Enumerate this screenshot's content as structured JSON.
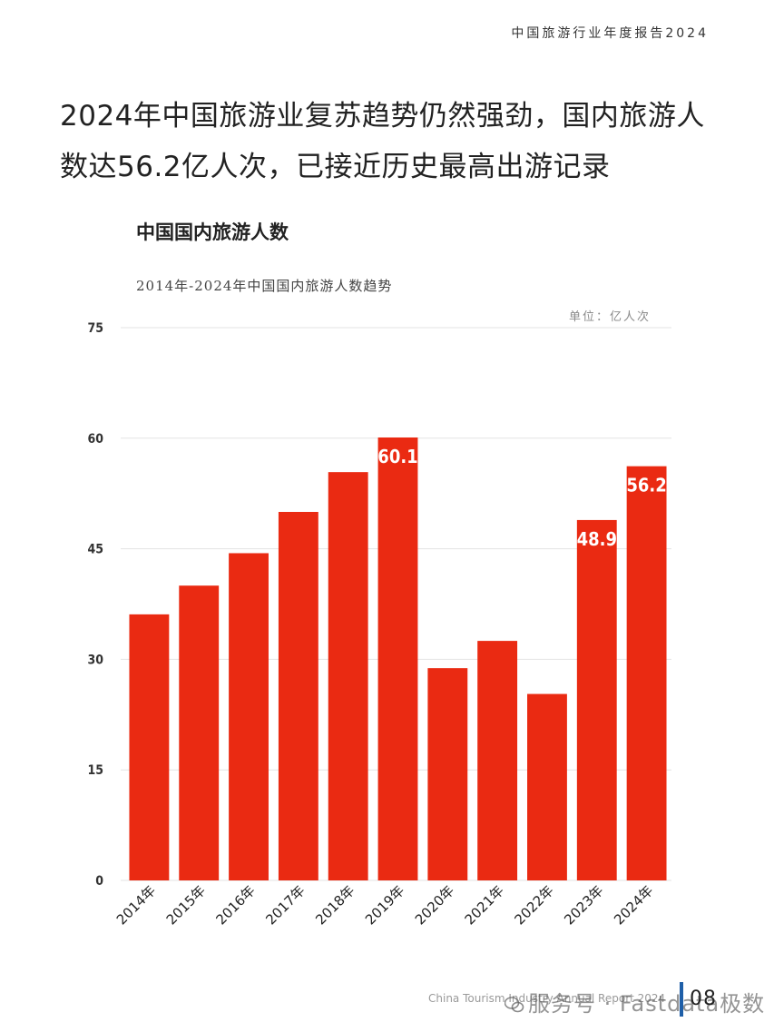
{
  "header": {
    "report_title": "中国旅游行业年度报告2024"
  },
  "headline": {
    "text": "2024年中国旅游业复苏趋势仍然强劲，国内旅游人数达56.2亿人次，已接近历史最高出游记录"
  },
  "chart_data": {
    "type": "bar",
    "title": "中国国内旅游人数",
    "subtitle": "2014年-2024年中国国内旅游人数趋势",
    "unit": "单位：亿人次",
    "categories": [
      "2014年",
      "2015年",
      "2016年",
      "2017年",
      "2018年",
      "2019年",
      "2020年",
      "2021年",
      "2022年",
      "2023年",
      "2024年"
    ],
    "values": [
      36.1,
      40.0,
      44.4,
      50.0,
      55.4,
      60.1,
      28.8,
      32.5,
      25.3,
      48.9,
      56.2
    ],
    "value_labels": [
      "",
      "",
      "",
      "",
      "",
      "60.1",
      "",
      "",
      "",
      "48.9",
      "56.2"
    ],
    "ylim": [
      0,
      75
    ],
    "yticks": [
      "0",
      "15",
      "30",
      "45",
      "60",
      "75"
    ],
    "grid": true,
    "bar_color": "#ea2a12",
    "xlabel": "",
    "ylabel": ""
  },
  "footer": {
    "report_name": "China Tourism Industry Annual Report 2024",
    "page_number": "08",
    "watermark": "服务号 · Fastdata极数"
  },
  "colors": {
    "bar": "#ea2a12",
    "page_bar": "#1f5fa8"
  }
}
